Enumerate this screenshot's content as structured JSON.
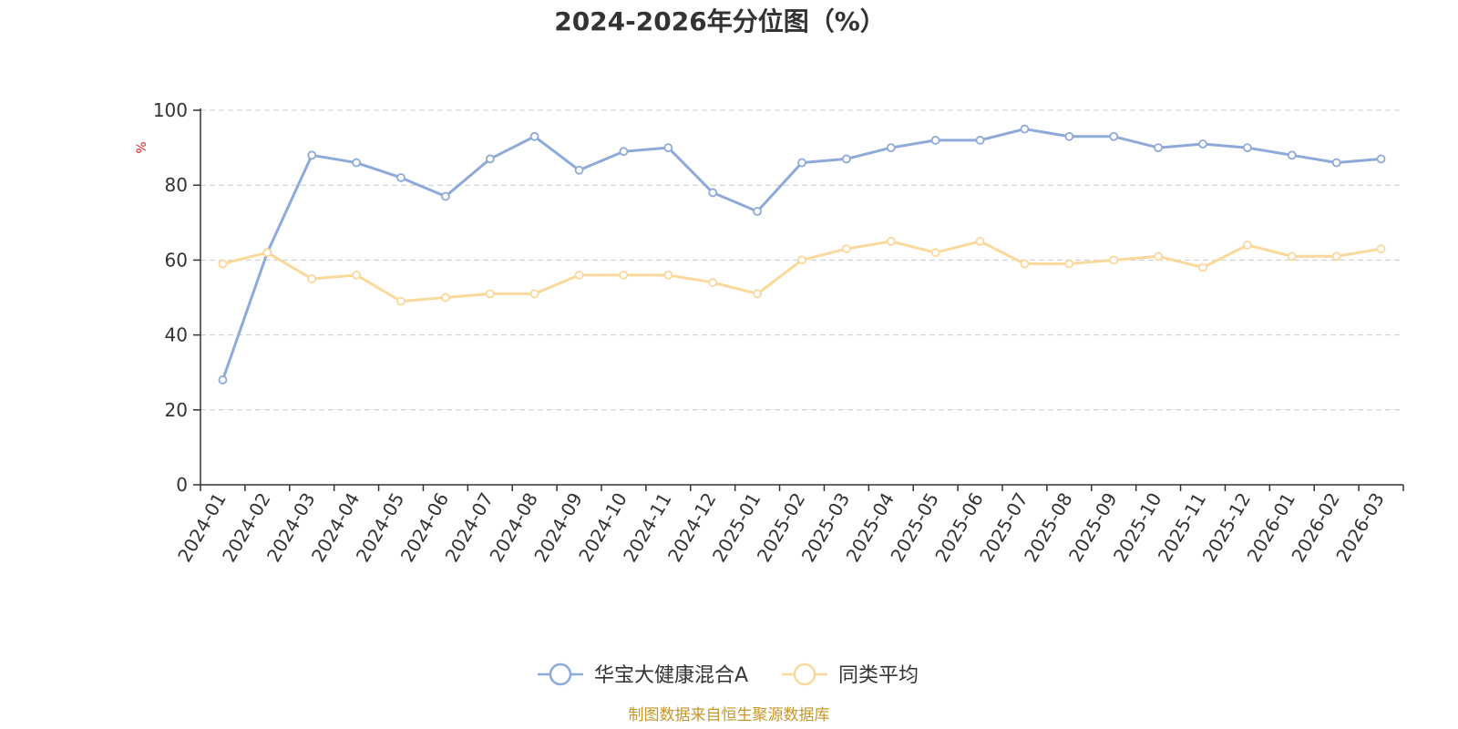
{
  "chart_data": {
    "type": "line",
    "title": "2024-2026年分位图（%）",
    "ylabel": "%",
    "ylim": [
      0,
      100
    ],
    "yticks": [
      0,
      20,
      40,
      60,
      80,
      100
    ],
    "grid": true,
    "legend_position": "bottom",
    "categories": [
      "2024-01",
      "2024-02",
      "2024-03",
      "2024-04",
      "2024-05",
      "2024-06",
      "2024-07",
      "2024-08",
      "2024-09",
      "2024-10",
      "2024-11",
      "2024-12",
      "2025-01",
      "2025-02",
      "2025-03",
      "2025-04",
      "2025-05",
      "2025-06",
      "2025-07",
      "2025-08",
      "2025-09",
      "2025-10",
      "2025-11",
      "2025-12",
      "2026-01",
      "2026-02",
      "2026-03"
    ],
    "series": [
      {
        "name": "华宝大健康混合A",
        "color": "#8eaad9",
        "values": [
          28,
          62,
          88,
          86,
          82,
          77,
          87,
          93,
          84,
          89,
          90,
          78,
          73,
          86,
          87,
          90,
          92,
          92,
          95,
          93,
          93,
          90,
          91,
          90,
          88,
          86,
          87
        ]
      },
      {
        "name": "同类平均",
        "color": "#fbd89b",
        "values": [
          59,
          62,
          55,
          56,
          49,
          50,
          51,
          51,
          56,
          56,
          56,
          54,
          51,
          60,
          63,
          65,
          62,
          65,
          59,
          59,
          60,
          61,
          58,
          64,
          61,
          61,
          63
        ]
      }
    ]
  },
  "source_text": "制图数据来自恒生聚源数据库",
  "colors": {
    "axis": "#333333",
    "grid": "#cccccc",
    "ylabel": "#e02020",
    "source": "#c8962a"
  }
}
